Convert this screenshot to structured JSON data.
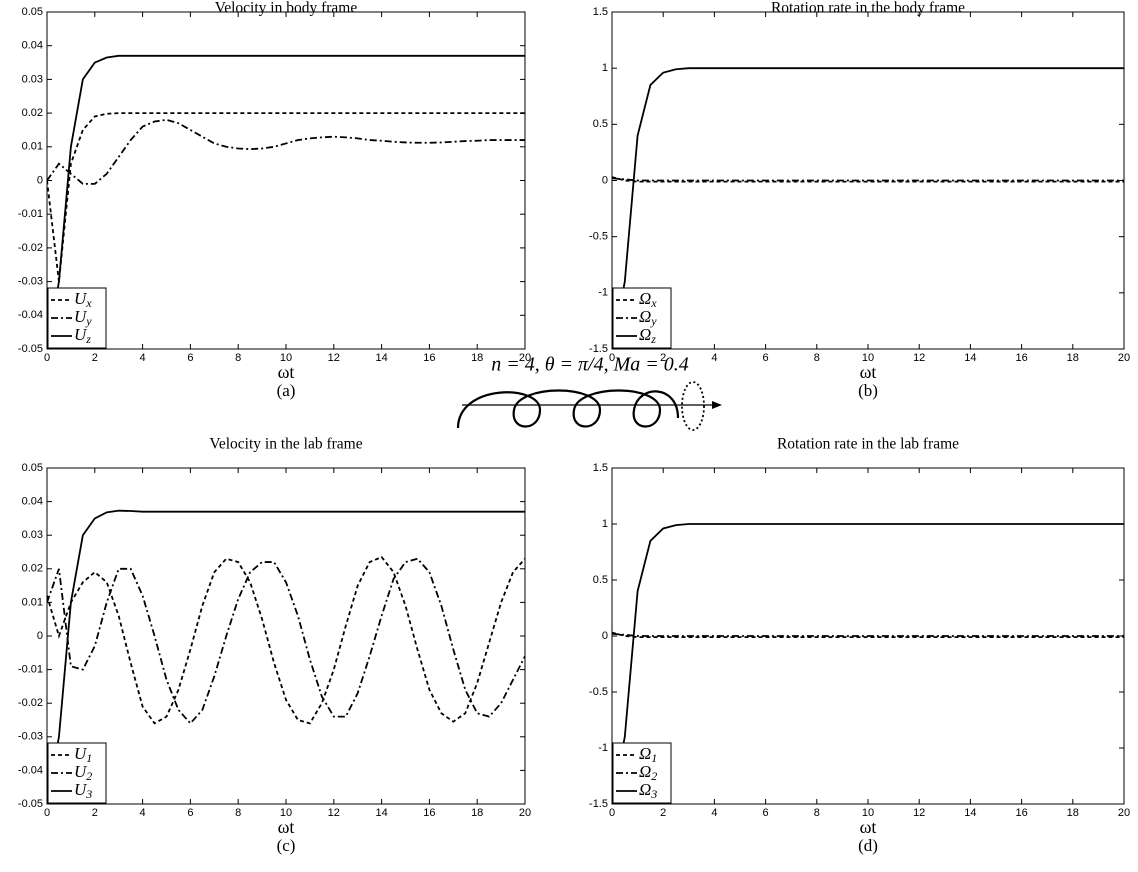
{
  "annotation": "n = 4, θ = π/4, Ma = 0.4",
  "chart_data": [
    {
      "type": "line",
      "title": "Velocity in body frame",
      "xlabel": "ωt",
      "caption": "(a)",
      "x": [
        0,
        0.5,
        1,
        1.5,
        2,
        2.5,
        3,
        3.5,
        4,
        4.5,
        5,
        5.5,
        6,
        6.5,
        7,
        7.5,
        8,
        8.5,
        9,
        9.5,
        10,
        10.5,
        11,
        11.5,
        12,
        12.5,
        13,
        13.5,
        14,
        14.5,
        15,
        15.5,
        16,
        16.5,
        17,
        17.5,
        18,
        18.5,
        19,
        19.5,
        20
      ],
      "xlim": [
        0,
        20
      ],
      "xticks": [
        0,
        2,
        4,
        6,
        8,
        10,
        12,
        14,
        16,
        18,
        20
      ],
      "ylim": [
        -0.05,
        0.05
      ],
      "yticks": [
        -0.05,
        -0.04,
        -0.03,
        -0.02,
        -0.01,
        0,
        0.01,
        0.02,
        0.03,
        0.04,
        0.05
      ],
      "legend": "lower left",
      "series": [
        {
          "name": "Ux",
          "color": "#000000",
          "style": "dashed",
          "values": [
            0,
            -0.03,
            0.005,
            0.015,
            0.019,
            0.0198,
            0.02,
            0.02,
            0.02,
            0.02,
            0.02,
            0.02,
            0.02,
            0.02,
            0.02,
            0.02,
            0.02,
            0.02,
            0.02,
            0.02,
            0.02,
            0.02,
            0.02,
            0.02,
            0.02,
            0.02,
            0.02,
            0.02,
            0.02,
            0.02,
            0.02,
            0.02,
            0.02,
            0.02,
            0.02,
            0.02,
            0.02,
            0.02,
            0.02,
            0.02,
            0.02
          ]
        },
        {
          "name": "Uy",
          "color": "#000000",
          "style": "dashdot",
          "values": [
            0,
            0.005,
            0.002,
            -0.001,
            -0.001,
            0.002,
            0.007,
            0.012,
            0.016,
            0.0175,
            0.018,
            0.017,
            0.015,
            0.013,
            0.011,
            0.01,
            0.0095,
            0.0093,
            0.0095,
            0.01,
            0.011,
            0.012,
            0.0125,
            0.0128,
            0.013,
            0.0128,
            0.0125,
            0.012,
            0.0118,
            0.0115,
            0.0113,
            0.0112,
            0.0112,
            0.0113,
            0.0115,
            0.0117,
            0.0118,
            0.012,
            0.012,
            0.012,
            0.012
          ]
        },
        {
          "name": "Uz",
          "color": "#000000",
          "style": "solid",
          "values": [
            -0.05,
            -0.03,
            0.01,
            0.03,
            0.035,
            0.0365,
            0.037,
            0.037,
            0.037,
            0.037,
            0.037,
            0.037,
            0.037,
            0.037,
            0.037,
            0.037,
            0.037,
            0.037,
            0.037,
            0.037,
            0.037,
            0.037,
            0.037,
            0.037,
            0.037,
            0.037,
            0.037,
            0.037,
            0.037,
            0.037,
            0.037,
            0.037,
            0.037,
            0.037,
            0.037,
            0.037,
            0.037,
            0.037,
            0.037,
            0.037,
            0.037
          ]
        }
      ]
    },
    {
      "type": "line",
      "title": "Rotation rate in the body frame",
      "xlabel": "ωt",
      "caption": "(b)",
      "x": [
        0,
        0.5,
        1,
        1.5,
        2,
        2.5,
        3,
        3.5,
        4,
        4.5,
        5,
        5.5,
        6,
        6.5,
        7,
        7.5,
        8,
        8.5,
        9,
        9.5,
        10,
        10.5,
        11,
        11.5,
        12,
        12.5,
        13,
        13.5,
        14,
        14.5,
        15,
        15.5,
        16,
        16.5,
        17,
        17.5,
        18,
        18.5,
        19,
        19.5,
        20
      ],
      "xlim": [
        0,
        20
      ],
      "xticks": [
        0,
        2,
        4,
        6,
        8,
        10,
        12,
        14,
        16,
        18,
        20
      ],
      "ylim": [
        -1.5,
        1.5
      ],
      "yticks": [
        -1.5,
        -1,
        -0.5,
        0,
        0.5,
        1,
        1.5
      ],
      "legend": "lower left",
      "series": [
        {
          "name": "Ωx",
          "color": "#000000",
          "style": "dashed",
          "values": [
            0.03,
            0,
            -0.01,
            -0.01,
            -0.01,
            -0.01,
            -0.01,
            -0.01,
            -0.01,
            -0.01,
            -0.01,
            -0.01,
            -0.01,
            -0.01,
            -0.01,
            -0.01,
            -0.01,
            -0.01,
            -0.01,
            -0.01,
            -0.01,
            -0.01,
            -0.01,
            -0.01,
            -0.01,
            -0.01,
            -0.01,
            -0.01,
            -0.01,
            -0.01,
            -0.01,
            -0.01,
            -0.01,
            -0.01,
            -0.01,
            -0.01,
            -0.01,
            -0.01,
            -0.01,
            -0.01,
            -0.01
          ]
        },
        {
          "name": "Ωy",
          "color": "#000000",
          "style": "dashdot",
          "values": [
            0.02,
            0.01,
            0,
            0,
            0,
            0,
            0,
            0,
            0,
            0,
            0,
            0,
            0,
            0,
            0,
            0,
            0,
            0,
            0,
            0,
            0,
            0,
            0,
            0,
            0,
            0,
            0,
            0,
            0,
            0,
            0,
            0,
            0,
            0,
            0,
            0,
            0,
            0,
            0,
            0,
            0
          ]
        },
        {
          "name": "Ωz",
          "color": "#000000",
          "style": "solid",
          "values": [
            -1.5,
            -0.9,
            0.4,
            0.85,
            0.96,
            0.99,
            1,
            1,
            1,
            1,
            1,
            1,
            1,
            1,
            1,
            1,
            1,
            1,
            1,
            1,
            1,
            1,
            1,
            1,
            1,
            1,
            1,
            1,
            1,
            1,
            1,
            1,
            1,
            1,
            1,
            1,
            1,
            1,
            1,
            1,
            1
          ]
        }
      ]
    },
    {
      "type": "line",
      "title": "Velocity in the lab frame",
      "xlabel": "ωt",
      "caption": "(c)",
      "x": [
        0,
        0.5,
        1,
        1.5,
        2,
        2.5,
        3,
        3.5,
        4,
        4.5,
        5,
        5.5,
        6,
        6.5,
        7,
        7.5,
        8,
        8.5,
        9,
        9.5,
        10,
        10.5,
        11,
        11.5,
        12,
        12.5,
        13,
        13.5,
        14,
        14.5,
        15,
        15.5,
        16,
        16.5,
        17,
        17.5,
        18,
        18.5,
        19,
        19.5,
        20
      ],
      "xlim": [
        0,
        20
      ],
      "xticks": [
        0,
        2,
        4,
        6,
        8,
        10,
        12,
        14,
        16,
        18,
        20
      ],
      "ylim": [
        -0.05,
        0.05
      ],
      "yticks": [
        -0.05,
        -0.04,
        -0.03,
        -0.02,
        -0.01,
        0,
        0.01,
        0.02,
        0.03,
        0.04,
        0.05
      ],
      "legend": "lower left",
      "series": [
        {
          "name": "U1",
          "color": "#000000",
          "style": "dashed",
          "values": [
            0.012,
            0,
            0.01,
            0.016,
            0.019,
            0.016,
            0.006,
            -0.008,
            -0.021,
            -0.026,
            -0.024,
            -0.016,
            -0.004,
            0.009,
            0.019,
            0.023,
            0.022,
            0.016,
            0.005,
            -0.008,
            -0.019,
            -0.025,
            -0.026,
            -0.02,
            -0.01,
            0.003,
            0.015,
            0.022,
            0.0235,
            0.019,
            0.009,
            -0.004,
            -0.016,
            -0.023,
            -0.0255,
            -0.023,
            -0.014,
            -0.002,
            0.01,
            0.019,
            0.023
          ]
        },
        {
          "name": "U2",
          "color": "#000000",
          "style": "dashdot",
          "values": [
            0.01,
            0.02,
            -0.009,
            -0.01,
            -0.003,
            0.01,
            0.02,
            0.02,
            0.012,
            0,
            -0.013,
            -0.022,
            -0.026,
            -0.022,
            -0.012,
            0,
            0.011,
            0.019,
            0.022,
            0.022,
            0.016,
            0.006,
            -0.007,
            -0.018,
            -0.024,
            -0.024,
            -0.017,
            -0.006,
            0.006,
            0.017,
            0.022,
            0.023,
            0.019,
            0.009,
            -0.004,
            -0.016,
            -0.023,
            -0.024,
            -0.02,
            -0.013,
            -0.006
          ]
        },
        {
          "name": "U3",
          "color": "#000000",
          "style": "solid",
          "values": [
            -0.05,
            -0.03,
            0.01,
            0.03,
            0.035,
            0.0368,
            0.0373,
            0.0372,
            0.037,
            0.037,
            0.037,
            0.037,
            0.037,
            0.037,
            0.037,
            0.037,
            0.037,
            0.037,
            0.037,
            0.037,
            0.037,
            0.037,
            0.037,
            0.037,
            0.037,
            0.037,
            0.037,
            0.037,
            0.037,
            0.037,
            0.037,
            0.037,
            0.037,
            0.037,
            0.037,
            0.037,
            0.037,
            0.037,
            0.037,
            0.037,
            0.037
          ]
        }
      ]
    },
    {
      "type": "line",
      "title": "Rotation rate in the lab frame",
      "xlabel": "ωt",
      "caption": "(d)",
      "x": [
        0,
        0.5,
        1,
        1.5,
        2,
        2.5,
        3,
        3.5,
        4,
        4.5,
        5,
        5.5,
        6,
        6.5,
        7,
        7.5,
        8,
        8.5,
        9,
        9.5,
        10,
        10.5,
        11,
        11.5,
        12,
        12.5,
        13,
        13.5,
        14,
        14.5,
        15,
        15.5,
        16,
        16.5,
        17,
        17.5,
        18,
        18.5,
        19,
        19.5,
        20
      ],
      "xlim": [
        0,
        20
      ],
      "xticks": [
        0,
        2,
        4,
        6,
        8,
        10,
        12,
        14,
        16,
        18,
        20
      ],
      "ylim": [
        -1.5,
        1.5
      ],
      "yticks": [
        -1.5,
        -1,
        -0.5,
        0,
        0.5,
        1,
        1.5
      ],
      "legend": "lower left",
      "series": [
        {
          "name": "Ω1",
          "color": "#000000",
          "style": "dashed",
          "values": [
            0.03,
            0,
            -0.01,
            -0.01,
            -0.01,
            -0.01,
            -0.01,
            -0.01,
            -0.01,
            -0.01,
            -0.01,
            -0.01,
            -0.01,
            -0.01,
            -0.01,
            -0.01,
            -0.01,
            -0.01,
            -0.01,
            -0.01,
            -0.01,
            -0.01,
            -0.01,
            -0.01,
            -0.01,
            -0.01,
            -0.01,
            -0.01,
            -0.01,
            -0.01,
            -0.01,
            -0.01,
            -0.01,
            -0.01,
            -0.01,
            -0.01,
            -0.01,
            -0.01,
            -0.01,
            -0.01,
            -0.01
          ]
        },
        {
          "name": "Ω2",
          "color": "#000000",
          "style": "dashdot",
          "values": [
            0.02,
            0.01,
            0,
            0,
            0,
            0,
            0,
            0,
            0,
            0,
            0,
            0,
            0,
            0,
            0,
            0,
            0,
            0,
            0,
            0,
            0,
            0,
            0,
            0,
            0,
            0,
            0,
            0,
            0,
            0,
            0,
            0,
            0,
            0,
            0,
            0,
            0,
            0,
            0,
            0,
            0
          ]
        },
        {
          "name": "Ω3",
          "color": "#000000",
          "style": "solid",
          "values": [
            -1.5,
            -0.9,
            0.4,
            0.85,
            0.96,
            0.99,
            1,
            1,
            1,
            1,
            1,
            1,
            1,
            1,
            1,
            1,
            1,
            1,
            1,
            1,
            1,
            1,
            1,
            1,
            1,
            1,
            1,
            1,
            1,
            1,
            1,
            1,
            1,
            1,
            1,
            1,
            1,
            1,
            1,
            1,
            1
          ]
        }
      ]
    }
  ]
}
